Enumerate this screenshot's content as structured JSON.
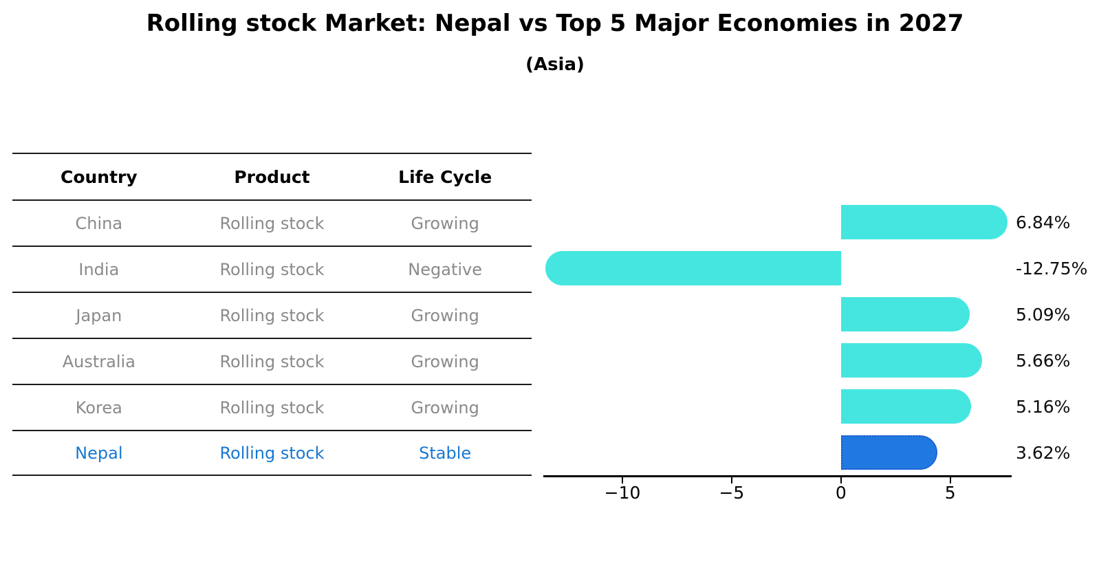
{
  "title": "Rolling stock Market: Nepal vs Top 5 Major Economies in 2027",
  "subtitle": "(Asia)",
  "table": {
    "headers": [
      "Country",
      "Product",
      "Life Cycle"
    ],
    "rows": [
      {
        "country": "China",
        "product": "Rolling stock",
        "life_cycle": "Growing",
        "highlighted": false
      },
      {
        "country": "India",
        "product": "Rolling stock",
        "life_cycle": "Negative",
        "highlighted": false
      },
      {
        "country": "Japan",
        "product": "Rolling stock",
        "life_cycle": "Growing",
        "highlighted": false
      },
      {
        "country": "Australia",
        "product": "Rolling stock",
        "life_cycle": "Growing",
        "highlighted": false
      },
      {
        "country": "Korea",
        "product": "Rolling stock",
        "life_cycle": "Growing",
        "highlighted": false
      },
      {
        "country": "Nepal",
        "product": "Rolling stock",
        "life_cycle": "Stable",
        "highlighted": true
      }
    ]
  },
  "chart_data": {
    "type": "bar",
    "orientation": "horizontal",
    "title": "Rolling stock Market: Nepal vs Top 5 Major Economies in 2027",
    "subtitle": "(Asia)",
    "categories": [
      "China",
      "India",
      "Japan",
      "Australia",
      "Korea",
      "Nepal"
    ],
    "values": [
      6.84,
      -12.75,
      5.09,
      5.66,
      5.16,
      3.62
    ],
    "value_labels": [
      "6.84%",
      "-12.75%",
      "5.09%",
      "5.66%",
      "5.16%",
      "3.62%"
    ],
    "x_ticks": [
      -10,
      -5,
      0,
      5
    ],
    "x_tick_labels": [
      "−10",
      "−5",
      "0",
      "5"
    ],
    "xlim": [
      -13.62,
      7.78
    ],
    "grid": false,
    "legend": "none",
    "highlight_index": 5
  },
  "colors": {
    "bar": "#45e6e0",
    "highlight_bar": "#2079e0",
    "highlight_border": "#1c55cc",
    "highlight_text": "#1878d2",
    "table_text": "#8a8a8a",
    "text": "#000000"
  }
}
